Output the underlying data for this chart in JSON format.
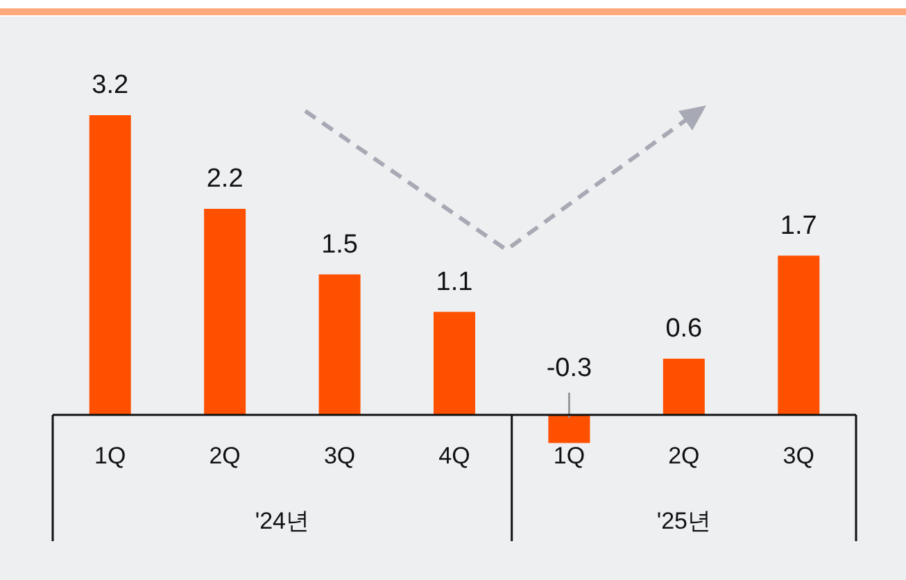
{
  "chart_data": {
    "type": "bar",
    "categories": [
      "1Q",
      "2Q",
      "3Q",
      "4Q",
      "1Q",
      "2Q",
      "3Q"
    ],
    "values": [
      3.2,
      2.2,
      1.5,
      1.1,
      -0.3,
      0.6,
      1.7
    ],
    "color": "#ff5000",
    "data_labels": true,
    "annotations": [
      "'24년",
      "'25년"
    ]
  }
}
